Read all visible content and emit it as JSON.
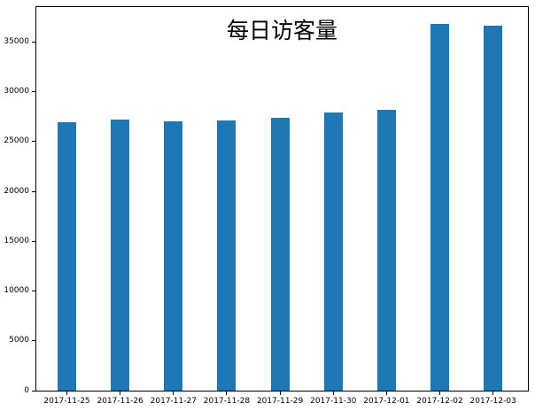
{
  "chart_data": {
    "type": "bar",
    "title": "每日访客量",
    "categories": [
      "2017-11-25",
      "2017-11-26",
      "2017-11-27",
      "2017-11-28",
      "2017-11-29",
      "2017-11-30",
      "2017-12-01",
      "2017-12-02",
      "2017-12-03"
    ],
    "values": [
      26900,
      27250,
      27000,
      27150,
      27400,
      27900,
      28150,
      36850,
      36650
    ],
    "xlabel": "",
    "ylabel": "",
    "ylim": [
      0,
      38500
    ],
    "yticks": [
      0,
      5000,
      10000,
      15000,
      20000,
      25000,
      30000,
      35000
    ],
    "grid": false,
    "legend_position": "none",
    "bar_color": "#1f77b4",
    "axis_color": "#000000",
    "background_color": "#ffffff"
  }
}
